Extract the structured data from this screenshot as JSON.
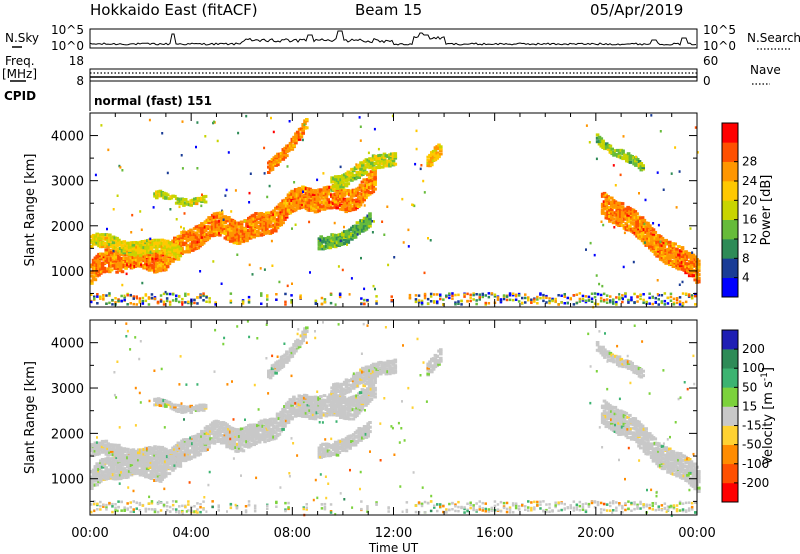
{
  "header": {
    "station": "Hokkaido East (fitACF)",
    "beam": "Beam 15",
    "date": "05/Apr/2019"
  },
  "panels": {
    "nsky_label": "N.Sky",
    "nsky_ticks": [
      "10^5",
      "10^0"
    ],
    "nsearch_label": "N.Search",
    "nsearch_ticks": [
      "10^5",
      "10^0"
    ],
    "freq_label": "Freq.",
    "freq_unit": "[MHz]",
    "freq_ticks": [
      "18",
      "8"
    ],
    "nave_label": "Nave",
    "nave_ticks": [
      "60",
      "0"
    ],
    "cpid_label": "CPID",
    "cpid_text": "normal (fast) 151"
  },
  "colors": {
    "power_scale": [
      "#0000ff",
      "#1a3c96",
      "#2e8b57",
      "#66bb3a",
      "#c8d400",
      "#ffc800",
      "#ff9600",
      "#ff5000",
      "#ff0000"
    ],
    "velocity_scale": [
      "#1f1fb4",
      "#2e8b57",
      "#3cb371",
      "#7cd23c",
      "#c8c8c8",
      "#ffd232",
      "#ff8c00",
      "#ff5000",
      "#ff0000"
    ],
    "ground_scatter": "#c8c8c8"
  },
  "chart_data": [
    {
      "type": "heatmap",
      "name": "power",
      "ylabel": "Slant Range [km]",
      "y_ticks": [
        "1000",
        "2000",
        "3000",
        "4000"
      ],
      "ylim": [
        200,
        4500
      ],
      "x_ticks": [
        "00:00",
        "04:00",
        "08:00",
        "12:00",
        "16:00",
        "20:00",
        "00:00"
      ],
      "xlim": [
        0,
        24
      ],
      "colorbar": {
        "label": "Power [dB]",
        "ticks": [
          "4",
          "8",
          "12",
          "16",
          "20",
          "24",
          "28"
        ],
        "range": [
          0,
          32
        ]
      },
      "regions": [
        {
          "t0": 0,
          "t1": 11.2,
          "r_start": 1000,
          "r_end": 3000,
          "width": 500,
          "value": 24
        },
        {
          "t0": 0,
          "t1": 3.5,
          "r_start": 1700,
          "r_end": 1500,
          "width": 300,
          "value": 18
        },
        {
          "t0": 2.5,
          "t1": 4.5,
          "r_start": 2700,
          "r_end": 2600,
          "width": 150,
          "value": 16
        },
        {
          "t0": 7,
          "t1": 8.5,
          "r_start": 3300,
          "r_end": 4300,
          "width": 250,
          "value": 24
        },
        {
          "t0": 9.5,
          "t1": 12,
          "r_start": 3000,
          "r_end": 3600,
          "width": 300,
          "value": 16
        },
        {
          "t0": 9,
          "t1": 11,
          "r_start": 1600,
          "r_end": 2100,
          "width": 300,
          "value": 12
        },
        {
          "t0": 13.3,
          "t1": 13.8,
          "r_start": 3400,
          "r_end": 3800,
          "width": 300,
          "value": 20
        },
        {
          "t0": 20.2,
          "t1": 24,
          "r_start": 2600,
          "r_end": 1000,
          "width": 550,
          "value": 24
        },
        {
          "t0": 20,
          "t1": 21.8,
          "r_start": 4000,
          "r_end": 3300,
          "width": 200,
          "value": 14
        }
      ]
    },
    {
      "type": "heatmap",
      "name": "velocity",
      "ylabel": "Slant Range [km]",
      "y_ticks": [
        "1000",
        "2000",
        "3000",
        "4000"
      ],
      "ylim": [
        200,
        4500
      ],
      "x_ticks": [
        "00:00",
        "04:00",
        "08:00",
        "12:00",
        "16:00",
        "20:00",
        "00:00"
      ],
      "xlabel": "Time UT",
      "xlim": [
        0,
        24
      ],
      "colorbar": {
        "label": "Velocity [m s",
        "label_sup": "-1",
        "label_end": "]",
        "ticks": [
          "200",
          "100",
          "50",
          "15",
          "-15",
          "-50",
          "-100",
          "-200"
        ],
        "bounds": [
          250,
          200,
          100,
          50,
          15,
          -15,
          -50,
          -100,
          -200,
          -250
        ]
      },
      "regions": [
        {
          "t0": 0,
          "t1": 11.2,
          "r_start": 1000,
          "r_end": 3000,
          "width": 500,
          "value": 0
        },
        {
          "t0": 0,
          "t1": 3.5,
          "r_start": 1700,
          "r_end": 1500,
          "width": 300,
          "value": 0
        },
        {
          "t0": 2.5,
          "t1": 4.5,
          "r_start": 2700,
          "r_end": 2600,
          "width": 150,
          "value": 0
        },
        {
          "t0": 7,
          "t1": 8.5,
          "r_start": 3300,
          "r_end": 4300,
          "width": 250,
          "value": 0
        },
        {
          "t0": 9.5,
          "t1": 12,
          "r_start": 3000,
          "r_end": 3600,
          "width": 300,
          "value": 0
        },
        {
          "t0": 9,
          "t1": 11,
          "r_start": 1600,
          "r_end": 2100,
          "width": 300,
          "value": 0
        },
        {
          "t0": 13.3,
          "t1": 13.8,
          "r_start": 3400,
          "r_end": 3800,
          "width": 300,
          "value": 0
        },
        {
          "t0": 20.2,
          "t1": 24,
          "r_start": 2600,
          "r_end": 1000,
          "width": 550,
          "value": 0
        },
        {
          "t0": 20,
          "t1": 21.8,
          "r_start": 4000,
          "r_end": 3300,
          "width": 200,
          "value": 0
        }
      ]
    }
  ]
}
